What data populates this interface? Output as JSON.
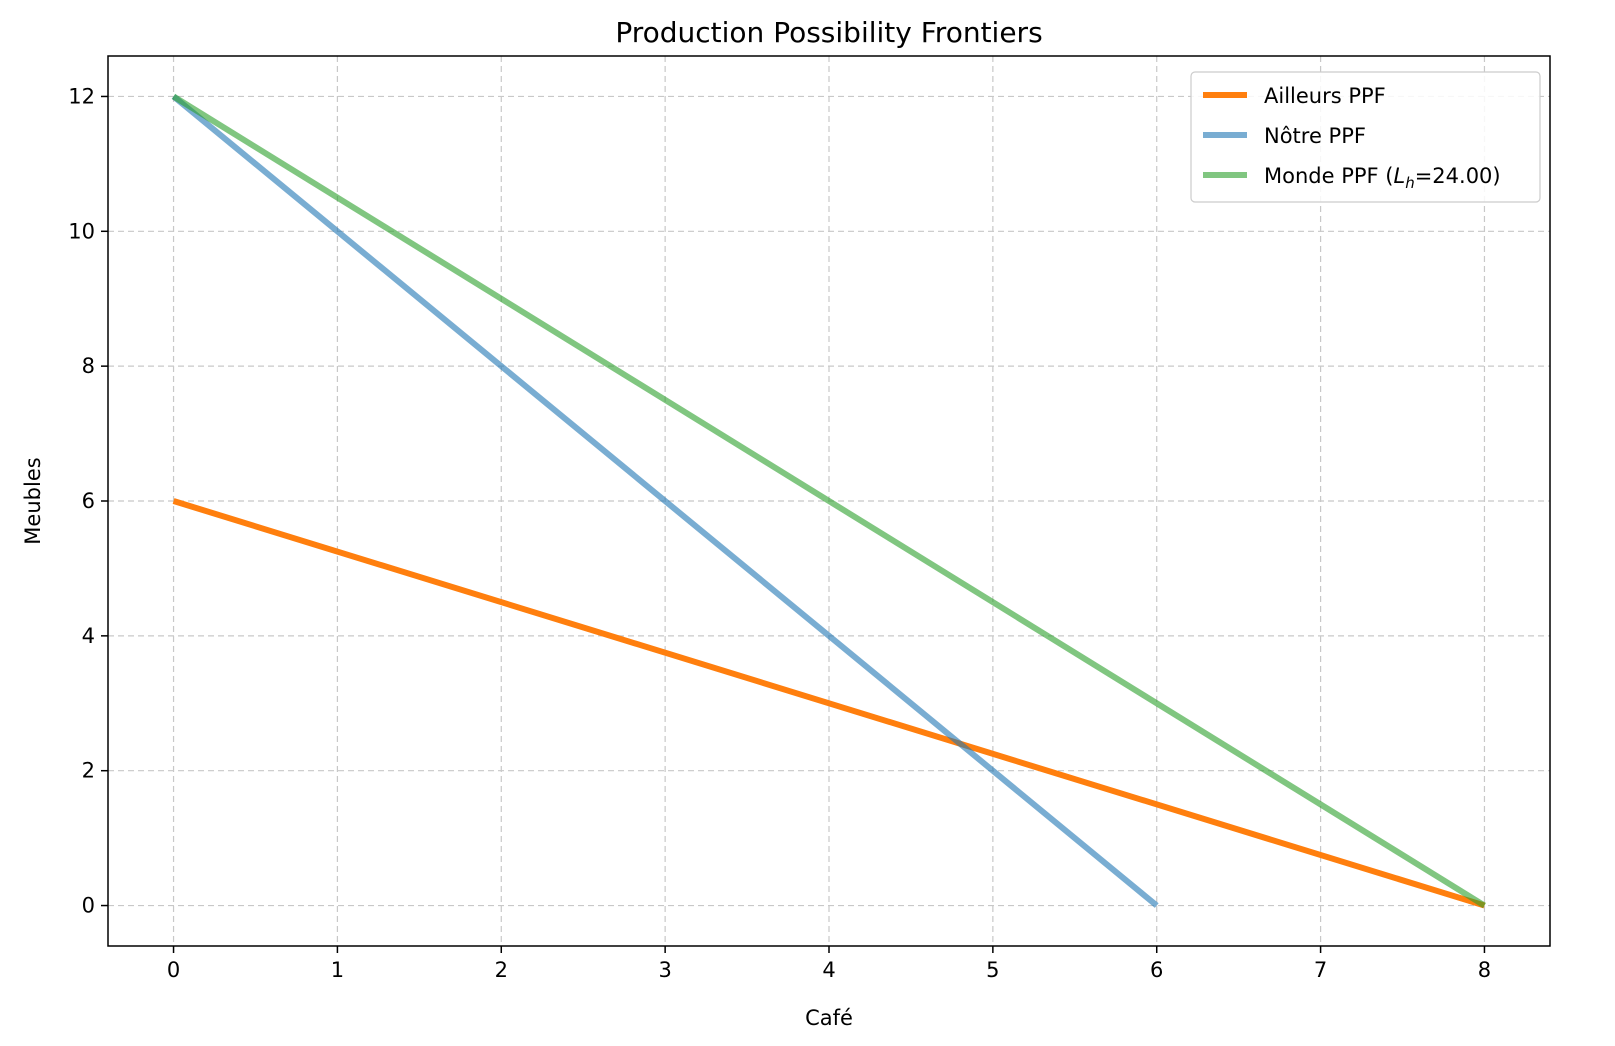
{
  "chart_data": {
    "type": "line",
    "title": "Production Possibility Frontiers",
    "xlabel": "Café",
    "ylabel": "Meubles",
    "xlim": [
      -0.4,
      8.4
    ],
    "ylim": [
      -0.6,
      12.6
    ],
    "xticks": [
      0,
      1,
      2,
      3,
      4,
      5,
      6,
      7,
      8
    ],
    "yticks": [
      0,
      2,
      4,
      6,
      8,
      10,
      12
    ],
    "grid": true,
    "legend_position": "top-right",
    "series": [
      {
        "name": "Ailleurs PPF",
        "color": "#ff7f0e",
        "opacity": 1.0,
        "x": [
          0,
          8
        ],
        "y": [
          6,
          0
        ]
      },
      {
        "name": "Nôtre PPF",
        "color": "#1f77b4",
        "opacity": 0.6,
        "x": [
          0,
          6
        ],
        "y": [
          12,
          0
        ]
      },
      {
        "name": "Monde PPF (",
        "name_math_var": "L",
        "name_math_sub": "h",
        "name_suffix": "=24.00)",
        "color": "#2ca02c",
        "opacity": 0.6,
        "x": [
          0,
          8
        ],
        "y": [
          12,
          0
        ]
      }
    ]
  }
}
